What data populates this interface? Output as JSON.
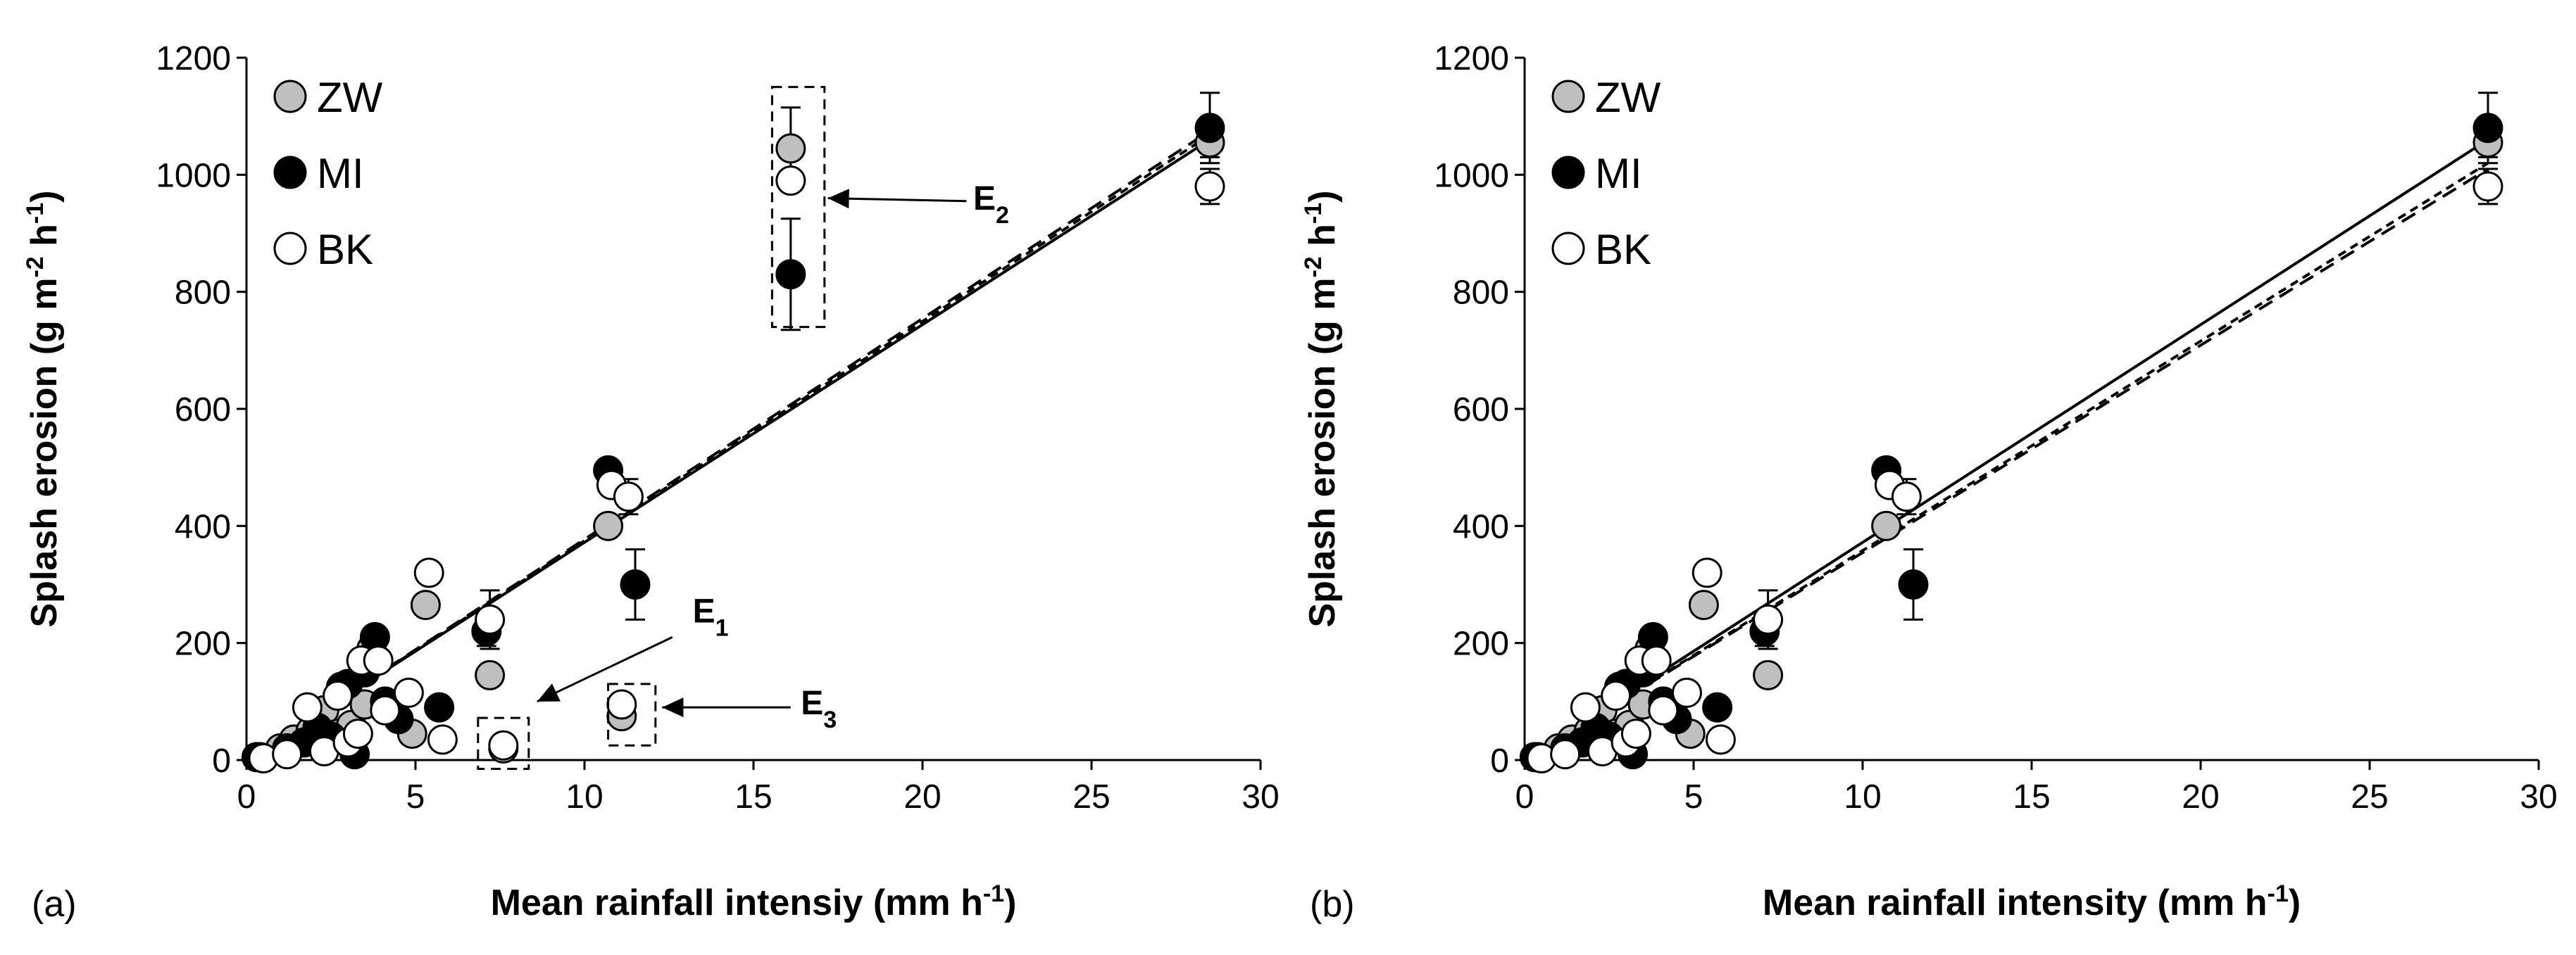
{
  "chart_data": [
    {
      "type": "scatter",
      "panel_label": "(a)",
      "xlabel": "Mean rainfall intensiy (mm h",
      "xlabel_sup": "-1",
      "xlabel_end": ")",
      "ylabel": "Splash erosion (g m",
      "ylabel_sup1": "-2",
      "ylabel_mid": " h",
      "ylabel_sup2": "-1",
      "ylabel_end": ")",
      "xlim": [
        0,
        30
      ],
      "ylim": [
        0,
        1200
      ],
      "x_ticks": [
        "0",
        "5",
        "10",
        "15",
        "20",
        "25",
        "30"
      ],
      "y_ticks": [
        "0",
        "200",
        "400",
        "600",
        "800",
        "1000",
        "1200"
      ],
      "legend_position": "top-left",
      "series": [
        {
          "name": "ZW",
          "marker": "grey-circle",
          "color": "#bfbfbf",
          "points": [
            [
              0.4,
              5
            ],
            [
              1.0,
              20
            ],
            [
              1.4,
              35
            ],
            [
              1.9,
              50
            ],
            [
              2.3,
              85
            ],
            [
              2.7,
              45
            ],
            [
              3.1,
              60
            ],
            [
              3.5,
              95
            ],
            [
              3.7,
              190
            ],
            [
              4.2,
              90
            ],
            [
              4.9,
              45
            ],
            [
              5.3,
              265
            ],
            [
              7.2,
              145
            ],
            [
              7.6,
              20
            ],
            [
              10.7,
              400
            ],
            [
              11.1,
              75
            ],
            [
              16.1,
              1045
            ],
            [
              28.5,
              1055
            ]
          ],
          "error_bars": [
            [
              16.1,
              1045,
              70
            ],
            [
              28.5,
              1055,
              25
            ]
          ]
        },
        {
          "name": "MI",
          "marker": "black-circle",
          "color": "#000000",
          "points": [
            [
              0.3,
              5
            ],
            [
              1.2,
              20
            ],
            [
              1.7,
              30
            ],
            [
              2.1,
              55
            ],
            [
              2.5,
              40
            ],
            [
              2.8,
              125
            ],
            [
              3.0,
              130
            ],
            [
              3.2,
              10
            ],
            [
              3.5,
              150
            ],
            [
              3.8,
              210
            ],
            [
              4.1,
              100
            ],
            [
              4.5,
              70
            ],
            [
              5.7,
              90
            ],
            [
              7.1,
              220
            ],
            [
              10.7,
              495
            ],
            [
              11.5,
              300
            ],
            [
              16.1,
              830
            ],
            [
              28.5,
              1080
            ]
          ],
          "error_bars": [
            [
              7.1,
              220,
              25
            ],
            [
              11.5,
              300,
              60
            ],
            [
              16.1,
              830,
              95
            ],
            [
              28.5,
              1080,
              60
            ]
          ]
        },
        {
          "name": "BK",
          "marker": "white-circle",
          "color": "#ffffff",
          "points": [
            [
              0.5,
              3
            ],
            [
              1.2,
              10
            ],
            [
              1.8,
              90
            ],
            [
              2.3,
              15
            ],
            [
              2.7,
              110
            ],
            [
              3.0,
              30
            ],
            [
              3.3,
              45
            ],
            [
              3.4,
              170
            ],
            [
              3.9,
              170
            ],
            [
              4.1,
              85
            ],
            [
              4.8,
              115
            ],
            [
              5.4,
              320
            ],
            [
              5.8,
              35
            ],
            [
              7.2,
              240
            ],
            [
              7.6,
              25
            ],
            [
              10.8,
              470
            ],
            [
              11.3,
              450
            ],
            [
              11.1,
              95
            ],
            [
              16.1,
              990
            ],
            [
              28.5,
              980
            ]
          ],
          "error_bars": [
            [
              7.2,
              240,
              50
            ],
            [
              11.3,
              450,
              30
            ],
            [
              28.5,
              980,
              30
            ]
          ]
        }
      ],
      "fit_lines": [
        {
          "name": "ZW fit",
          "style": "dashed",
          "x": [
            0,
            28.5
          ],
          "y": [
            0,
            1075
          ]
        },
        {
          "name": "MI fit",
          "style": "solid",
          "x": [
            0,
            28.5
          ],
          "y": [
            0,
            1060
          ]
        },
        {
          "name": "BK fit",
          "style": "dotted",
          "x": [
            0,
            28.5
          ],
          "y": [
            0,
            1068
          ]
        }
      ],
      "annotations": [
        {
          "label": "E",
          "sub": "1"
        },
        {
          "label": "E",
          "sub": "2"
        },
        {
          "label": "E",
          "sub": "3"
        }
      ]
    },
    {
      "type": "scatter",
      "panel_label": "(b)",
      "xlabel": "Mean rainfall intensity (mm h",
      "xlabel_sup": "-1",
      "xlabel_end": ")",
      "ylabel": "Splash erosion (g m",
      "ylabel_sup1": "-2",
      "ylabel_mid": " h",
      "ylabel_sup2": "-1",
      "ylabel_end": ")",
      "xlim": [
        0,
        30
      ],
      "ylim": [
        0,
        1200
      ],
      "x_ticks": [
        "0",
        "5",
        "10",
        "15",
        "20",
        "25",
        "30"
      ],
      "y_ticks": [
        "0",
        "200",
        "400",
        "600",
        "800",
        "1000",
        "1200"
      ],
      "legend_position": "top-left",
      "series": [
        {
          "name": "ZW",
          "marker": "grey-circle",
          "color": "#bfbfbf",
          "points": [
            [
              0.4,
              5
            ],
            [
              1.0,
              20
            ],
            [
              1.4,
              35
            ],
            [
              1.9,
              50
            ],
            [
              2.3,
              85
            ],
            [
              2.7,
              45
            ],
            [
              3.1,
              60
            ],
            [
              3.5,
              95
            ],
            [
              3.7,
              190
            ],
            [
              4.2,
              90
            ],
            [
              4.9,
              45
            ],
            [
              5.3,
              265
            ],
            [
              7.2,
              145
            ],
            [
              10.7,
              400
            ],
            [
              28.5,
              1055
            ]
          ],
          "error_bars": [
            [
              28.5,
              1055,
              25
            ]
          ]
        },
        {
          "name": "MI",
          "marker": "black-circle",
          "color": "#000000",
          "points": [
            [
              0.3,
              5
            ],
            [
              1.2,
              20
            ],
            [
              1.7,
              30
            ],
            [
              2.1,
              55
            ],
            [
              2.5,
              40
            ],
            [
              2.8,
              125
            ],
            [
              3.0,
              130
            ],
            [
              3.2,
              10
            ],
            [
              3.5,
              150
            ],
            [
              3.8,
              210
            ],
            [
              4.1,
              100
            ],
            [
              4.5,
              70
            ],
            [
              5.7,
              90
            ],
            [
              7.1,
              220
            ],
            [
              10.7,
              495
            ],
            [
              11.5,
              300
            ],
            [
              28.5,
              1080
            ]
          ],
          "error_bars": [
            [
              7.1,
              220,
              25
            ],
            [
              11.5,
              300,
              60
            ],
            [
              28.5,
              1080,
              60
            ]
          ]
        },
        {
          "name": "BK",
          "marker": "white-circle",
          "color": "#ffffff",
          "points": [
            [
              0.5,
              3
            ],
            [
              1.2,
              10
            ],
            [
              1.8,
              90
            ],
            [
              2.3,
              15
            ],
            [
              2.7,
              110
            ],
            [
              3.0,
              30
            ],
            [
              3.3,
              45
            ],
            [
              3.4,
              170
            ],
            [
              3.9,
              170
            ],
            [
              4.1,
              85
            ],
            [
              4.8,
              115
            ],
            [
              5.4,
              320
            ],
            [
              5.8,
              35
            ],
            [
              7.2,
              240
            ],
            [
              10.8,
              470
            ],
            [
              11.3,
              450
            ],
            [
              28.5,
              980
            ]
          ],
          "error_bars": [
            [
              7.2,
              240,
              50
            ],
            [
              11.3,
              450,
              30
            ],
            [
              28.5,
              980,
              30
            ]
          ]
        }
      ],
      "fit_lines": [
        {
          "name": "ZW fit",
          "style": "dashed",
          "x": [
            0,
            28.5
          ],
          "y": [
            0,
            1010
          ]
        },
        {
          "name": "MI fit",
          "style": "solid",
          "x": [
            0,
            28.5
          ],
          "y": [
            0,
            1060
          ]
        },
        {
          "name": "BK fit",
          "style": "dotted",
          "x": [
            0,
            28.5
          ],
          "y": [
            0,
            1020
          ]
        }
      ],
      "annotations": []
    }
  ]
}
